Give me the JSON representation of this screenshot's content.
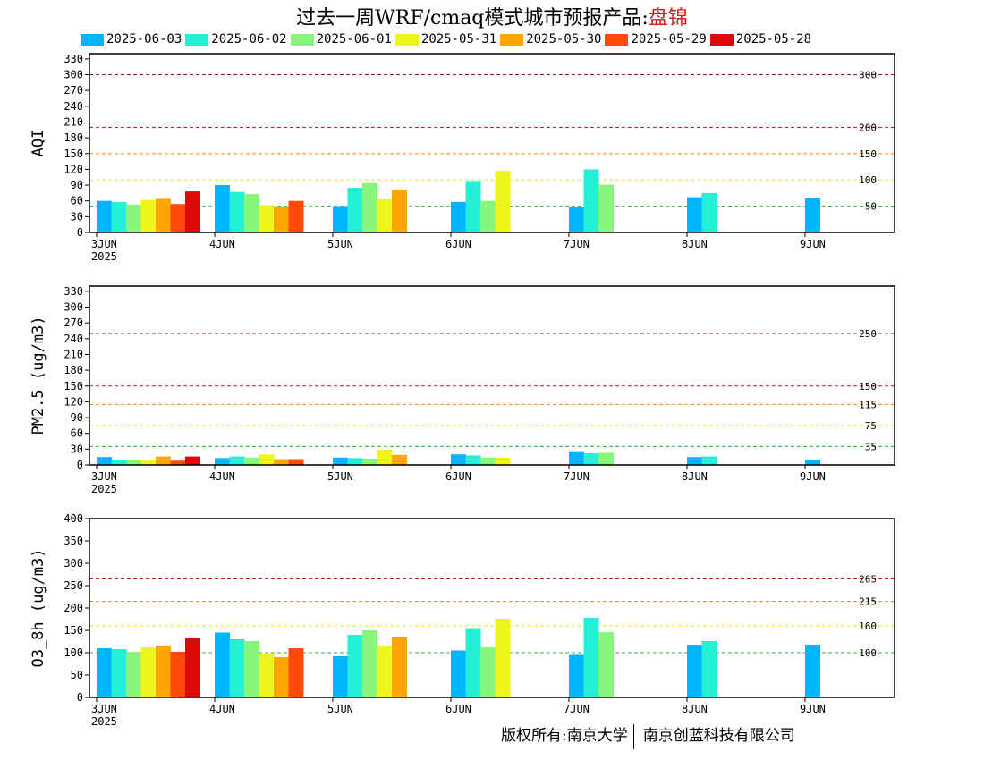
{
  "header": {
    "title_prefix": "过去一周WRF/cmaq模式城市预报产品:",
    "city": "盘锦"
  },
  "legend": {
    "items": [
      {
        "label": "2025-06-03",
        "color": "#00b4ff"
      },
      {
        "label": "2025-06-02",
        "color": "#24f0d8"
      },
      {
        "label": "2025-06-01",
        "color": "#88f57c"
      },
      {
        "label": "2025-05-31",
        "color": "#eef51c"
      },
      {
        "label": "2025-05-30",
        "color": "#ffa600"
      },
      {
        "label": "2025-05-29",
        "color": "#ff4a0c"
      },
      {
        "label": "2025-05-28",
        "color": "#dd0808"
      }
    ]
  },
  "chart_data": [
    {
      "type": "bar",
      "ylabel": "AQI",
      "ylim": [
        0,
        340
      ],
      "yticks": [
        0,
        30,
        60,
        90,
        120,
        150,
        180,
        210,
        240,
        270,
        300,
        330
      ],
      "categories": [
        "3JUN",
        "4JUN",
        "5JUN",
        "6JUN",
        "7JUN",
        "8JUN",
        "9JUN"
      ],
      "year_label": "2025",
      "thresholds": [
        {
          "value": 50,
          "label": "50",
          "color": "#22b822"
        },
        {
          "value": 100,
          "label": "100",
          "color": "#e6e600"
        },
        {
          "value": 150,
          "label": "150",
          "color": "#ff8c00"
        },
        {
          "value": 200,
          "label": "200",
          "color": "#d01010"
        },
        {
          "value": 300,
          "label": "300",
          "color": "#a0104a"
        }
      ],
      "series": [
        {
          "name": "2025-06-03",
          "values": [
            60,
            90,
            50,
            58,
            48,
            67,
            65
          ]
        },
        {
          "name": "2025-06-02",
          "values": [
            58,
            77,
            85,
            98,
            120,
            75,
            null
          ]
        },
        {
          "name": "2025-06-01",
          "values": [
            53,
            73,
            94,
            60,
            91,
            null,
            null
          ]
        },
        {
          "name": "2025-05-31",
          "values": [
            62,
            52,
            63,
            117,
            null,
            null,
            null
          ]
        },
        {
          "name": "2025-05-30",
          "values": [
            64,
            49,
            81,
            null,
            null,
            null,
            null
          ]
        },
        {
          "name": "2025-05-29",
          "values": [
            54,
            60,
            null,
            null,
            null,
            null,
            null
          ]
        },
        {
          "name": "2025-05-28",
          "values": [
            78,
            null,
            null,
            null,
            null,
            null,
            null
          ]
        }
      ]
    },
    {
      "type": "bar",
      "ylabel": "PM2.5 (ug/m3)",
      "ylim": [
        0,
        340
      ],
      "yticks": [
        0,
        30,
        60,
        90,
        120,
        150,
        180,
        210,
        240,
        270,
        300,
        330
      ],
      "categories": [
        "3JUN",
        "4JUN",
        "5JUN",
        "6JUN",
        "7JUN",
        "8JUN",
        "9JUN"
      ],
      "year_label": "2025",
      "thresholds": [
        {
          "value": 35,
          "label": "35",
          "color": "#22b822"
        },
        {
          "value": 75,
          "label": "75",
          "color": "#e6e600"
        },
        {
          "value": 115,
          "label": "115",
          "color": "#ff8c00"
        },
        {
          "value": 150,
          "label": "150",
          "color": "#d01010"
        },
        {
          "value": 250,
          "label": "250",
          "color": "#a0104a"
        }
      ],
      "series": [
        {
          "name": "2025-06-03",
          "values": [
            15,
            13,
            14,
            20,
            26,
            15,
            10
          ]
        },
        {
          "name": "2025-06-02",
          "values": [
            10,
            16,
            13,
            18,
            22,
            16,
            null
          ]
        },
        {
          "name": "2025-06-01",
          "values": [
            10,
            14,
            12,
            14,
            23,
            null,
            null
          ]
        },
        {
          "name": "2025-05-31",
          "values": [
            10,
            20,
            29,
            14,
            null,
            null,
            null
          ]
        },
        {
          "name": "2025-05-30",
          "values": [
            16,
            11,
            19,
            null,
            null,
            null,
            null
          ]
        },
        {
          "name": "2025-05-29",
          "values": [
            8,
            11,
            null,
            null,
            null,
            null,
            null
          ]
        },
        {
          "name": "2025-05-28",
          "values": [
            16,
            null,
            null,
            null,
            null,
            null,
            null
          ]
        }
      ]
    },
    {
      "type": "bar",
      "ylabel": "O3_8h (ug/m3)",
      "ylim": [
        0,
        400
      ],
      "yticks": [
        0,
        50,
        100,
        150,
        200,
        250,
        300,
        350,
        400
      ],
      "categories": [
        "3JUN",
        "4JUN",
        "5JUN",
        "6JUN",
        "7JUN",
        "8JUN",
        "9JUN"
      ],
      "year_label": "2025",
      "thresholds": [
        {
          "value": 100,
          "label": "100",
          "color": "#22b822"
        },
        {
          "value": 160,
          "label": "160",
          "color": "#e6e600"
        },
        {
          "value": 215,
          "label": "215",
          "color": "#ff8c00"
        },
        {
          "value": 265,
          "label": "265",
          "color": "#d01010"
        }
      ],
      "series": [
        {
          "name": "2025-06-03",
          "values": [
            110,
            145,
            92,
            105,
            95,
            118,
            118
          ]
        },
        {
          "name": "2025-06-02",
          "values": [
            108,
            130,
            140,
            155,
            178,
            126,
            null
          ]
        },
        {
          "name": "2025-06-01",
          "values": [
            102,
            126,
            150,
            112,
            146,
            null,
            null
          ]
        },
        {
          "name": "2025-05-31",
          "values": [
            112,
            98,
            115,
            176,
            null,
            null,
            null
          ]
        },
        {
          "name": "2025-05-30",
          "values": [
            116,
            90,
            136,
            null,
            null,
            null,
            null
          ]
        },
        {
          "name": "2025-05-29",
          "values": [
            102,
            110,
            null,
            null,
            null,
            null,
            null
          ]
        },
        {
          "name": "2025-05-28",
          "values": [
            132,
            null,
            null,
            null,
            null,
            null,
            null
          ]
        }
      ]
    }
  ],
  "footer": {
    "copyright_left": "版权所有:南京大学",
    "copyright_right": "南京创蓝科技有限公司"
  }
}
